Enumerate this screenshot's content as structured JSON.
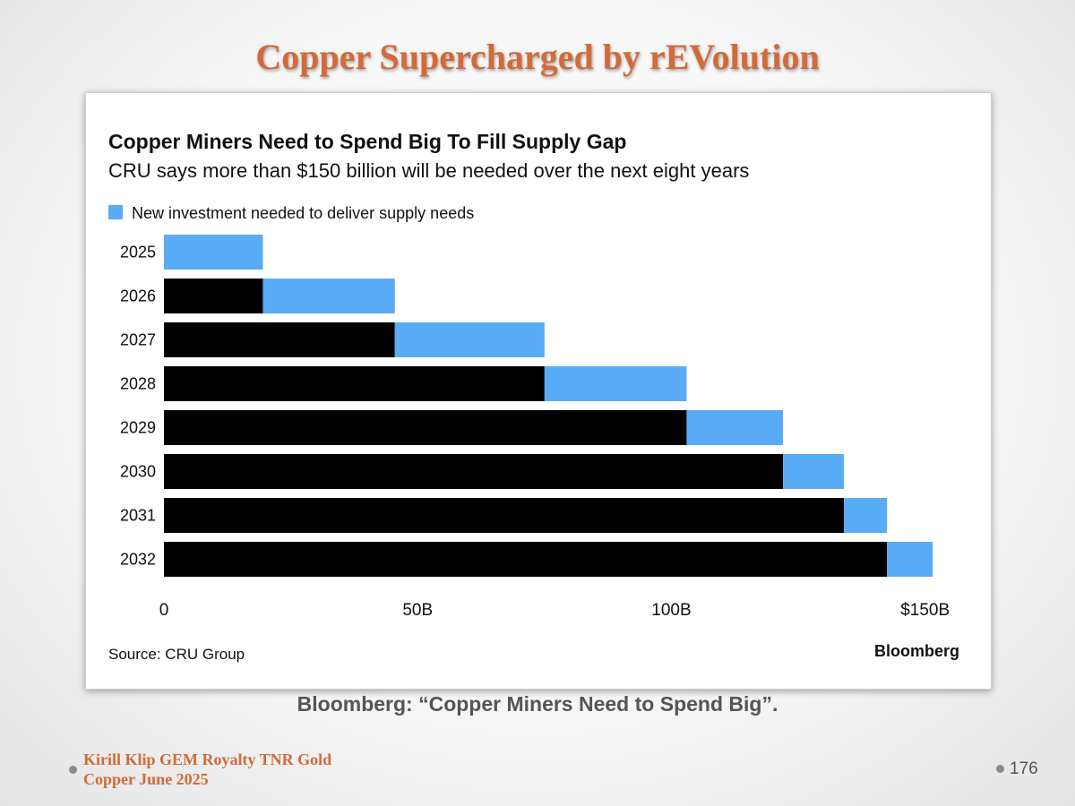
{
  "slide": {
    "title": "Copper Supercharged by rEVolution",
    "caption": "Bloomberg: “Copper Miners Need to Spend Big”.",
    "footer_line1": "Kirill Klip GEM Royalty TNR Gold",
    "footer_line2": "Copper June 2025",
    "page_number": "176",
    "accent_color": "#d26a3a"
  },
  "chart_data": {
    "type": "bar",
    "orientation": "horizontal",
    "stacked": true,
    "title": "Copper Miners Need to Spend Big To Fill Supply Gap",
    "subtitle": "CRU says more than $150 billion will be needed over the next eight years",
    "categories": [
      "2025",
      "2026",
      "2027",
      "2028",
      "2029",
      "2030",
      "2031",
      "2032"
    ],
    "series": [
      {
        "values": [
          0,
          19.5,
          45.5,
          75,
          103,
          122,
          134,
          142.5
        ],
        "color": "#000000"
      },
      {
        "name": "New investment needed to deliver supply needs",
        "values": [
          19.5,
          26,
          29.5,
          28,
          19,
          12,
          8.5,
          9
        ],
        "color": "#5aabf6"
      }
    ],
    "x_ticks": [
      0,
      50,
      100,
      150
    ],
    "x_tick_labels": [
      "0",
      "50B",
      "100B",
      "$150B"
    ],
    "xlim": [
      0,
      155
    ],
    "legend_position": "top-left",
    "grid": false,
    "source": "Source: CRU Group",
    "brand": "Bloomberg"
  }
}
